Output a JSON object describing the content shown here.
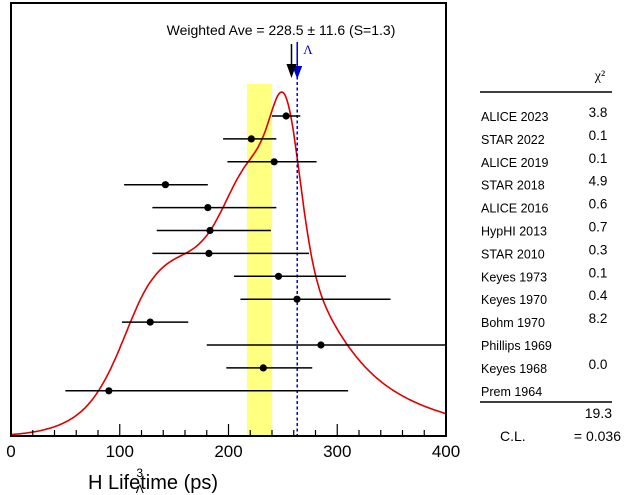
{
  "chart_data": {
    "type": "scatter",
    "subtype": "ideogram with error bars",
    "annotation": "Weighted Ave = 228.5 ± 11.6 (S=1.3)",
    "xlabel": {
      "sup": "3",
      "sub": "Λ",
      "main": "H Lifetime (ps)"
    },
    "xlim": [
      0,
      400
    ],
    "xticks": [
      "0",
      "100",
      "200",
      "300",
      "400"
    ],
    "weighted_average": {
      "value": 228.5,
      "error": 11.6
    },
    "lambda_marker": {
      "value": 263.2,
      "label": "Λ"
    },
    "column_header": "χ²",
    "measurements": [
      {
        "name": "ALICE 2023",
        "value": 253,
        "minus": 13,
        "plus": 13,
        "chi2": "3.8"
      },
      {
        "name": "STAR 2022",
        "value": 221,
        "minus": 26,
        "plus": 23,
        "chi2": "0.1"
      },
      {
        "name": "ALICE 2019",
        "value": 242,
        "minus": 43,
        "plus": 39,
        "chi2": "0.1"
      },
      {
        "name": "STAR 2018",
        "value": 142,
        "minus": 38,
        "plus": 39,
        "chi2": "4.9"
      },
      {
        "name": "ALICE 2016",
        "value": 181,
        "minus": 51,
        "plus": 63,
        "chi2": "0.6"
      },
      {
        "name": "HypHI 2013",
        "value": 183,
        "minus": 49,
        "plus": 56,
        "chi2": "0.7"
      },
      {
        "name": "STAR 2010",
        "value": 182,
        "minus": 52,
        "plus": 92,
        "chi2": "0.3"
      },
      {
        "name": "Keyes 1973",
        "value": 246,
        "minus": 41,
        "plus": 62,
        "chi2": "0.1"
      },
      {
        "name": "Keyes 1970",
        "value": 263,
        "minus": 52,
        "plus": 86,
        "chi2": "0.4"
      },
      {
        "name": "Bohm 1970",
        "value": 128,
        "minus": 26,
        "plus": 35,
        "chi2": "8.2"
      },
      {
        "name": "Phillips 1969",
        "value": 285,
        "minus": 105,
        "plus": 115,
        "chi2": ""
      },
      {
        "name": "Keyes 1968",
        "value": 232,
        "minus": 34,
        "plus": 45,
        "chi2": "0.0"
      },
      {
        "name": "Prem 1964",
        "value": 90,
        "minus": 40,
        "plus": 220,
        "chi2": ""
      }
    ],
    "chi2_total": "19.3",
    "cl_label": "C.L.",
    "cl_value": "= 0.036",
    "colors": {
      "ideogram": "#dd0000",
      "band": "#ffff80",
      "lambda": "#0000cc",
      "points": "#000000"
    }
  }
}
